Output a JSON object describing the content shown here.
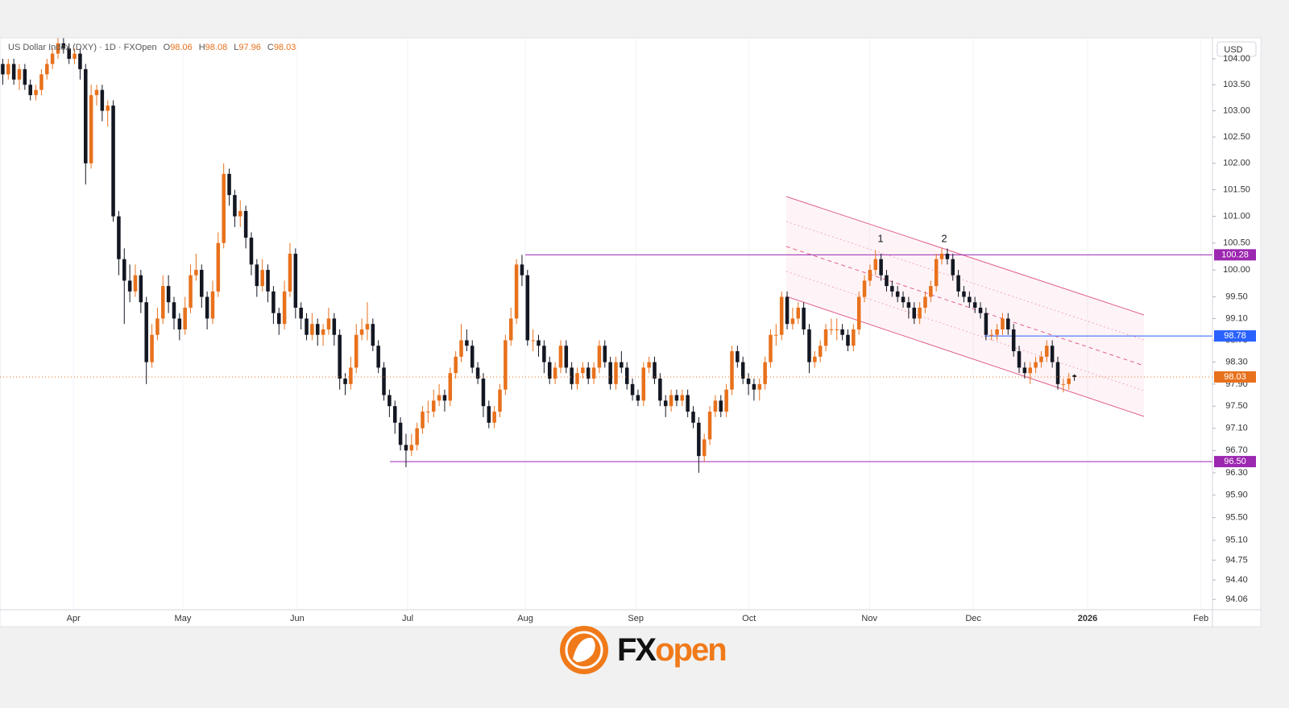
{
  "chart_data": {
    "type": "candlestick",
    "title": "US Dollar Index (DXY) · 1D · FXOpen",
    "ohlc_labels": [
      "O",
      "H",
      "L",
      "C"
    ],
    "ohlc": [
      [
        103.9,
        104.0,
        103.5,
        103.7
      ],
      [
        103.7,
        104.0,
        103.6,
        103.9
      ],
      [
        103.9,
        104.0,
        103.5,
        103.6
      ],
      [
        103.6,
        103.9,
        103.4,
        103.8
      ],
      [
        103.8,
        103.9,
        103.4,
        103.5
      ],
      [
        103.5,
        103.6,
        103.2,
        103.3
      ],
      [
        103.3,
        103.5,
        103.2,
        103.4
      ],
      [
        103.4,
        103.8,
        103.3,
        103.7
      ],
      [
        103.7,
        104.0,
        103.6,
        103.9
      ],
      [
        103.9,
        104.2,
        103.8,
        104.1
      ],
      [
        104.1,
        104.4,
        104.0,
        104.3
      ],
      [
        104.3,
        104.4,
        104.1,
        104.2
      ],
      [
        104.2,
        104.3,
        103.9,
        104.0
      ],
      [
        104.0,
        104.2,
        103.9,
        104.1
      ],
      [
        104.1,
        104.2,
        103.6,
        103.8
      ],
      [
        103.8,
        103.9,
        101.6,
        102.0
      ],
      [
        102.0,
        103.5,
        101.9,
        103.3
      ],
      [
        103.3,
        103.5,
        103.1,
        103.4
      ],
      [
        103.4,
        103.5,
        102.8,
        103.0
      ],
      [
        103.0,
        103.2,
        102.7,
        103.1
      ],
      [
        103.1,
        103.2,
        100.9,
        101.0
      ],
      [
        101.0,
        101.1,
        99.9,
        100.2
      ],
      [
        100.2,
        100.4,
        99.0,
        99.8
      ],
      [
        99.8,
        100.1,
        99.4,
        99.6
      ],
      [
        99.6,
        100.1,
        99.5,
        99.9
      ],
      [
        99.9,
        100.0,
        99.2,
        99.4
      ],
      [
        99.4,
        99.5,
        97.9,
        98.3
      ],
      [
        98.3,
        99.0,
        98.2,
        98.8
      ],
      [
        98.8,
        99.3,
        98.7,
        99.1
      ],
      [
        99.1,
        99.9,
        99.0,
        99.7
      ],
      [
        99.7,
        99.9,
        99.2,
        99.4
      ],
      [
        99.4,
        99.5,
        98.9,
        99.1
      ],
      [
        99.1,
        99.2,
        98.7,
        98.9
      ],
      [
        98.9,
        99.5,
        98.8,
        99.3
      ],
      [
        99.3,
        100.1,
        99.2,
        99.9
      ],
      [
        99.9,
        100.3,
        99.8,
        100.0
      ],
      [
        100.0,
        100.1,
        99.3,
        99.5
      ],
      [
        99.5,
        99.6,
        98.9,
        99.1
      ],
      [
        99.1,
        99.8,
        99.0,
        99.6
      ],
      [
        99.6,
        100.7,
        99.5,
        100.5
      ],
      [
        100.5,
        102.0,
        100.4,
        101.8
      ],
      [
        101.8,
        101.9,
        101.2,
        101.4
      ],
      [
        101.4,
        101.5,
        100.8,
        101.0
      ],
      [
        101.0,
        101.3,
        100.8,
        101.1
      ],
      [
        101.1,
        101.2,
        100.4,
        100.6
      ],
      [
        100.6,
        100.7,
        99.9,
        100.1
      ],
      [
        100.1,
        100.2,
        99.5,
        99.7
      ],
      [
        99.7,
        100.2,
        99.6,
        100.0
      ],
      [
        100.0,
        100.1,
        99.4,
        99.6
      ],
      [
        99.6,
        99.7,
        99.0,
        99.2
      ],
      [
        99.2,
        99.3,
        98.8,
        99.0
      ],
      [
        99.0,
        99.8,
        98.9,
        99.6
      ],
      [
        99.6,
        100.5,
        99.5,
        100.3
      ],
      [
        100.3,
        100.4,
        99.1,
        99.3
      ],
      [
        99.3,
        99.4,
        98.9,
        99.1
      ],
      [
        99.1,
        99.2,
        98.7,
        98.8
      ],
      [
        98.8,
        99.2,
        98.7,
        99.0
      ],
      [
        99.0,
        99.1,
        98.6,
        98.8
      ],
      [
        98.8,
        99.0,
        98.6,
        98.9
      ],
      [
        98.9,
        99.3,
        98.8,
        99.1
      ],
      [
        99.1,
        99.2,
        98.6,
        98.8
      ],
      [
        98.8,
        98.9,
        97.8,
        98.0
      ],
      [
        98.0,
        98.1,
        97.7,
        97.9
      ],
      [
        97.9,
        98.4,
        97.8,
        98.2
      ],
      [
        98.2,
        99.0,
        98.1,
        98.8
      ],
      [
        98.8,
        99.1,
        98.7,
        98.9
      ],
      [
        98.9,
        99.4,
        98.7,
        99.0
      ],
      [
        99.0,
        99.1,
        98.5,
        98.6
      ],
      [
        98.6,
        98.7,
        98.1,
        98.2
      ],
      [
        98.2,
        98.3,
        97.6,
        97.7
      ],
      [
        97.7,
        97.8,
        97.3,
        97.5
      ],
      [
        97.5,
        97.6,
        97.0,
        97.2
      ],
      [
        97.2,
        97.3,
        96.7,
        96.8
      ],
      [
        96.8,
        97.0,
        96.4,
        96.7
      ],
      [
        96.7,
        97.0,
        96.6,
        96.8
      ],
      [
        96.8,
        97.2,
        96.7,
        97.1
      ],
      [
        97.1,
        97.5,
        97.0,
        97.4
      ],
      [
        97.4,
        97.6,
        97.2,
        97.4
      ],
      [
        97.4,
        97.8,
        97.3,
        97.6
      ],
      [
        97.6,
        97.9,
        97.5,
        97.7
      ],
      [
        97.7,
        97.8,
        97.4,
        97.6
      ],
      [
        97.6,
        98.2,
        97.5,
        98.1
      ],
      [
        98.1,
        98.5,
        98.0,
        98.4
      ],
      [
        98.4,
        99.0,
        98.3,
        98.7
      ],
      [
        98.7,
        98.9,
        98.5,
        98.6
      ],
      [
        98.6,
        98.7,
        98.1,
        98.2
      ],
      [
        98.2,
        98.3,
        97.9,
        98.0
      ],
      [
        98.0,
        98.1,
        97.3,
        97.5
      ],
      [
        97.5,
        97.6,
        97.1,
        97.2
      ],
      [
        97.2,
        97.5,
        97.1,
        97.4
      ],
      [
        97.4,
        97.9,
        97.3,
        97.8
      ],
      [
        97.8,
        98.8,
        97.7,
        98.7
      ],
      [
        98.7,
        99.3,
        98.6,
        99.1
      ],
      [
        99.1,
        100.2,
        99.0,
        100.1
      ],
      [
        100.1,
        100.28,
        99.7,
        99.9
      ],
      [
        99.9,
        100.0,
        98.6,
        98.7
      ],
      [
        98.7,
        98.9,
        98.5,
        98.7
      ],
      [
        98.7,
        98.8,
        98.4,
        98.6
      ],
      [
        98.6,
        98.7,
        98.1,
        98.3
      ],
      [
        98.3,
        98.4,
        97.9,
        98.0
      ],
      [
        98.0,
        98.3,
        97.9,
        98.2
      ],
      [
        98.2,
        98.7,
        98.1,
        98.6
      ],
      [
        98.6,
        98.7,
        98.1,
        98.2
      ],
      [
        98.2,
        98.3,
        97.8,
        97.9
      ],
      [
        97.9,
        98.2,
        97.8,
        98.1
      ],
      [
        98.1,
        98.3,
        98.0,
        98.2
      ],
      [
        98.2,
        98.3,
        97.9,
        98.0
      ],
      [
        98.0,
        98.3,
        97.9,
        98.2
      ],
      [
        98.2,
        98.7,
        98.1,
        98.6
      ],
      [
        98.6,
        98.7,
        98.2,
        98.3
      ],
      [
        98.3,
        98.4,
        97.8,
        97.9
      ],
      [
        97.9,
        98.4,
        97.8,
        98.3
      ],
      [
        98.3,
        98.5,
        98.1,
        98.2
      ],
      [
        98.2,
        98.3,
        97.8,
        97.9
      ],
      [
        97.9,
        98.0,
        97.6,
        97.7
      ],
      [
        97.7,
        97.8,
        97.5,
        97.6
      ],
      [
        97.6,
        98.3,
        97.5,
        98.2
      ],
      [
        98.2,
        98.4,
        98.1,
        98.3
      ],
      [
        98.3,
        98.4,
        97.9,
        98.0
      ],
      [
        98.0,
        98.1,
        97.5,
        97.6
      ],
      [
        97.6,
        97.7,
        97.3,
        97.5
      ],
      [
        97.5,
        97.8,
        97.4,
        97.7
      ],
      [
        97.7,
        97.8,
        97.5,
        97.6
      ],
      [
        97.6,
        97.8,
        97.5,
        97.7
      ],
      [
        97.7,
        97.8,
        97.3,
        97.4
      ],
      [
        97.4,
        97.5,
        97.1,
        97.2
      ],
      [
        97.2,
        97.3,
        96.3,
        96.6
      ],
      [
        96.6,
        97.0,
        96.5,
        96.9
      ],
      [
        96.9,
        97.5,
        96.8,
        97.4
      ],
      [
        97.4,
        97.7,
        97.3,
        97.6
      ],
      [
        97.6,
        97.7,
        97.3,
        97.4
      ],
      [
        97.4,
        97.9,
        97.3,
        97.8
      ],
      [
        97.8,
        98.6,
        97.7,
        98.5
      ],
      [
        98.5,
        98.6,
        98.2,
        98.3
      ],
      [
        98.3,
        98.4,
        97.9,
        98.0
      ],
      [
        98.0,
        98.1,
        97.7,
        97.9
      ],
      [
        97.9,
        98.0,
        97.6,
        97.8
      ],
      [
        97.8,
        98.0,
        97.6,
        97.9
      ],
      [
        97.9,
        98.4,
        97.8,
        98.3
      ],
      [
        98.3,
        98.9,
        98.2,
        98.8
      ],
      [
        98.8,
        99.0,
        98.6,
        98.8
      ],
      [
        98.8,
        99.6,
        98.7,
        99.5
      ],
      [
        99.5,
        99.6,
        98.9,
        99.0
      ],
      [
        99.0,
        99.3,
        98.9,
        99.1
      ],
      [
        99.1,
        99.4,
        99.0,
        99.3
      ],
      [
        99.3,
        99.4,
        98.8,
        98.9
      ],
      [
        98.9,
        99.0,
        98.1,
        98.3
      ],
      [
        98.3,
        98.5,
        98.2,
        98.4
      ],
      [
        98.4,
        98.7,
        98.3,
        98.6
      ],
      [
        98.6,
        99.0,
        98.5,
        98.9
      ],
      [
        98.9,
        99.1,
        98.8,
        98.9
      ],
      [
        98.9,
        99.1,
        98.7,
        98.9
      ],
      [
        98.9,
        99.0,
        98.7,
        98.8
      ],
      [
        98.8,
        98.9,
        98.5,
        98.6
      ],
      [
        98.6,
        99.0,
        98.5,
        98.9
      ],
      [
        98.9,
        99.6,
        98.8,
        99.5
      ],
      [
        99.5,
        99.9,
        99.4,
        99.8
      ],
      [
        99.8,
        100.1,
        99.7,
        100.0
      ],
      [
        100.0,
        100.36,
        99.9,
        100.2
      ],
      [
        100.2,
        100.3,
        99.8,
        99.9
      ],
      [
        99.9,
        100.0,
        99.6,
        99.7
      ],
      [
        99.7,
        99.8,
        99.5,
        99.6
      ],
      [
        99.6,
        99.7,
        99.4,
        99.5
      ],
      [
        99.5,
        99.6,
        99.3,
        99.4
      ],
      [
        99.4,
        99.5,
        99.1,
        99.3
      ],
      [
        99.3,
        99.4,
        99.0,
        99.1
      ],
      [
        99.1,
        99.4,
        99.0,
        99.3
      ],
      [
        99.3,
        99.6,
        99.2,
        99.5
      ],
      [
        99.5,
        99.8,
        99.4,
        99.7
      ],
      [
        99.7,
        100.3,
        99.6,
        100.2
      ],
      [
        100.2,
        100.4,
        100.1,
        100.3
      ],
      [
        100.3,
        100.4,
        100.1,
        100.2
      ],
      [
        100.2,
        100.3,
        99.8,
        99.9
      ],
      [
        99.9,
        100.0,
        99.5,
        99.6
      ],
      [
        99.6,
        99.7,
        99.4,
        99.5
      ],
      [
        99.5,
        99.6,
        99.3,
        99.4
      ],
      [
        99.4,
        99.5,
        99.2,
        99.3
      ],
      [
        99.3,
        99.4,
        99.1,
        99.2
      ],
      [
        99.2,
        99.3,
        98.7,
        98.8
      ],
      [
        98.8,
        98.9,
        98.7,
        98.8
      ],
      [
        98.8,
        99.0,
        98.7,
        98.9
      ],
      [
        98.9,
        99.2,
        98.8,
        99.1
      ],
      [
        99.1,
        99.2,
        98.8,
        98.9
      ],
      [
        98.9,
        99.0,
        98.4,
        98.5
      ],
      [
        98.5,
        98.6,
        98.1,
        98.2
      ],
      [
        98.2,
        98.3,
        98.0,
        98.1
      ],
      [
        98.1,
        98.3,
        97.9,
        98.2
      ],
      [
        98.2,
        98.4,
        98.1,
        98.3
      ],
      [
        98.3,
        98.5,
        98.2,
        98.4
      ],
      [
        98.4,
        98.7,
        98.3,
        98.6
      ],
      [
        98.6,
        98.7,
        98.2,
        98.3
      ],
      [
        98.3,
        98.4,
        97.8,
        97.9
      ],
      [
        97.9,
        98.0,
        97.75,
        97.9
      ],
      [
        97.9,
        98.1,
        97.8,
        98.0
      ],
      [
        98.06,
        98.08,
        97.96,
        98.03
      ]
    ],
    "colors": {
      "up": "#e8711c",
      "down": "#131722"
    },
    "xlim": [
      -0.5,
      219
    ],
    "xticks": [
      {
        "value": 12.8,
        "label": "Apr"
      },
      {
        "value": 32.6,
        "label": "May"
      },
      {
        "value": 53.3,
        "label": "Jun"
      },
      {
        "value": 73.3,
        "label": "Jul"
      },
      {
        "value": 94.6,
        "label": "Aug"
      },
      {
        "value": 114.6,
        "label": "Sep"
      },
      {
        "value": 135.1,
        "label": "Oct"
      },
      {
        "value": 156.9,
        "label": "Nov"
      },
      {
        "value": 175.7,
        "label": "Dec"
      },
      {
        "value": 196.4,
        "label": "2026"
      },
      {
        "value": 216.9,
        "label": "Feb"
      }
    ],
    "ylim": [
      93.88,
      104.39
    ],
    "log_y": true,
    "yticks": [
      {
        "value": 104,
        "label": "104.00"
      },
      {
        "value": 103.5,
        "label": "103.50"
      },
      {
        "value": 103,
        "label": "103.00"
      },
      {
        "value": 102.5,
        "label": "102.50"
      },
      {
        "value": 102,
        "label": "102.00"
      },
      {
        "value": 101.5,
        "label": "101.50"
      },
      {
        "value": 101,
        "label": "101.00"
      },
      {
        "value": 100.5,
        "label": "100.50"
      },
      {
        "value": 100,
        "label": "100.00"
      },
      {
        "value": 99.5,
        "label": "99.50"
      },
      {
        "value": 99.1,
        "label": "99.10"
      },
      {
        "value": 98.7,
        "label": "98.70"
      },
      {
        "value": 98.3,
        "label": "98.30"
      },
      {
        "value": 97.9,
        "label": "97.90"
      },
      {
        "value": 97.5,
        "label": "97.50"
      },
      {
        "value": 97.1,
        "label": "97.10"
      },
      {
        "value": 96.7,
        "label": "96.70"
      },
      {
        "value": 96.3,
        "label": "96.30"
      },
      {
        "value": 95.9,
        "label": "95.90"
      },
      {
        "value": 95.5,
        "label": "95.50"
      },
      {
        "value": 95.1,
        "label": "95.10"
      },
      {
        "value": 94.75,
        "label": "94.75"
      },
      {
        "value": 94.4,
        "label": "94.40"
      },
      {
        "value": 94.06,
        "label": "94.06"
      }
    ],
    "grid": "x",
    "currency": "USD",
    "levels": [
      100.28,
      98.78,
      {
        "value": 96.5,
        "label": "96.50"
      }
    ],
    "level_colors": [
      "#9c27b0",
      "#2962ff",
      "#9c27b0"
    ],
    "annotations": [
      "1",
      "2"
    ]
  },
  "logo": {
    "brand": [
      "FX",
      "open"
    ]
  }
}
